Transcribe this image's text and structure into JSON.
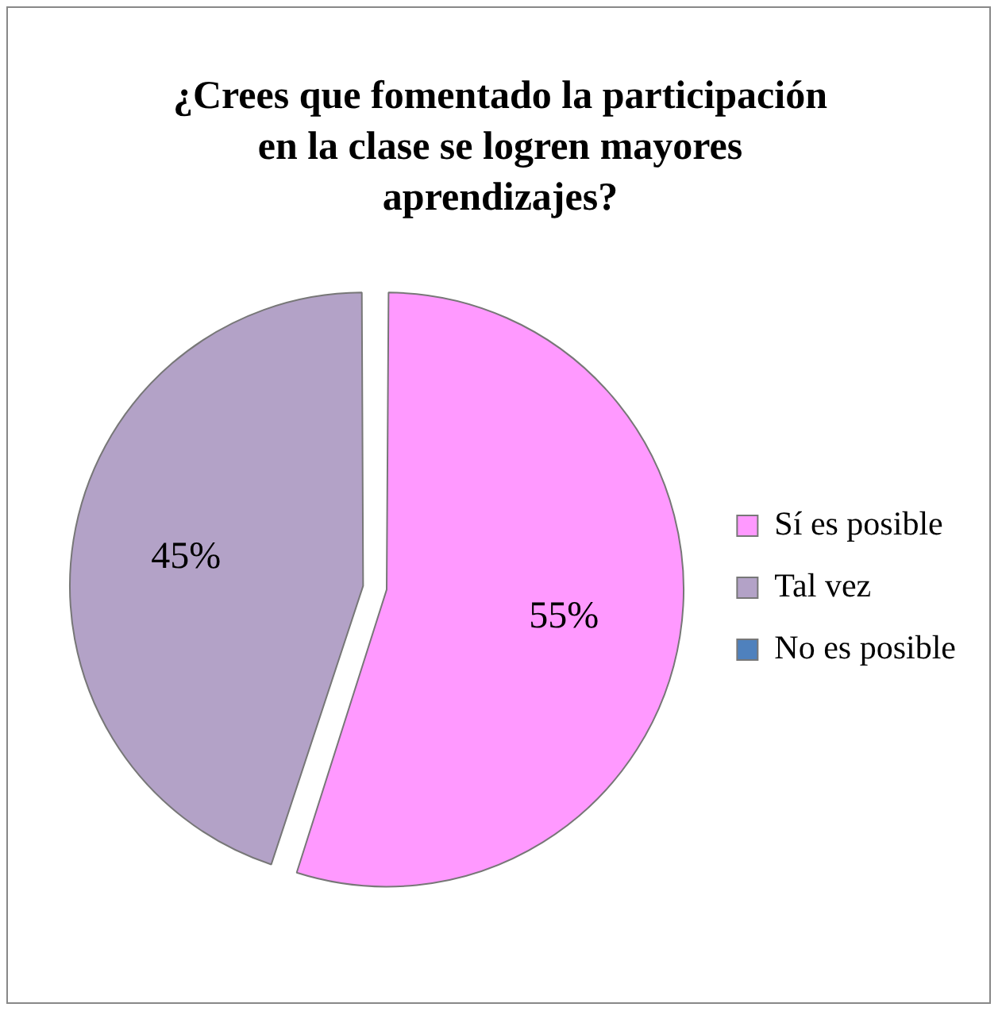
{
  "chart_data": {
    "type": "pie",
    "title": "¿Crees que fomentado la participación en la clase se logren mayores aprendizajes?",
    "categories": [
      "Sí es posible",
      "Tal vez",
      "No es posible"
    ],
    "values": [
      55,
      45,
      0
    ],
    "colors": [
      "#ff99ff",
      "#b3a2c7",
      "#4f81bd"
    ],
    "value_labels": [
      "55%",
      "45%",
      null
    ],
    "legend": "right"
  }
}
